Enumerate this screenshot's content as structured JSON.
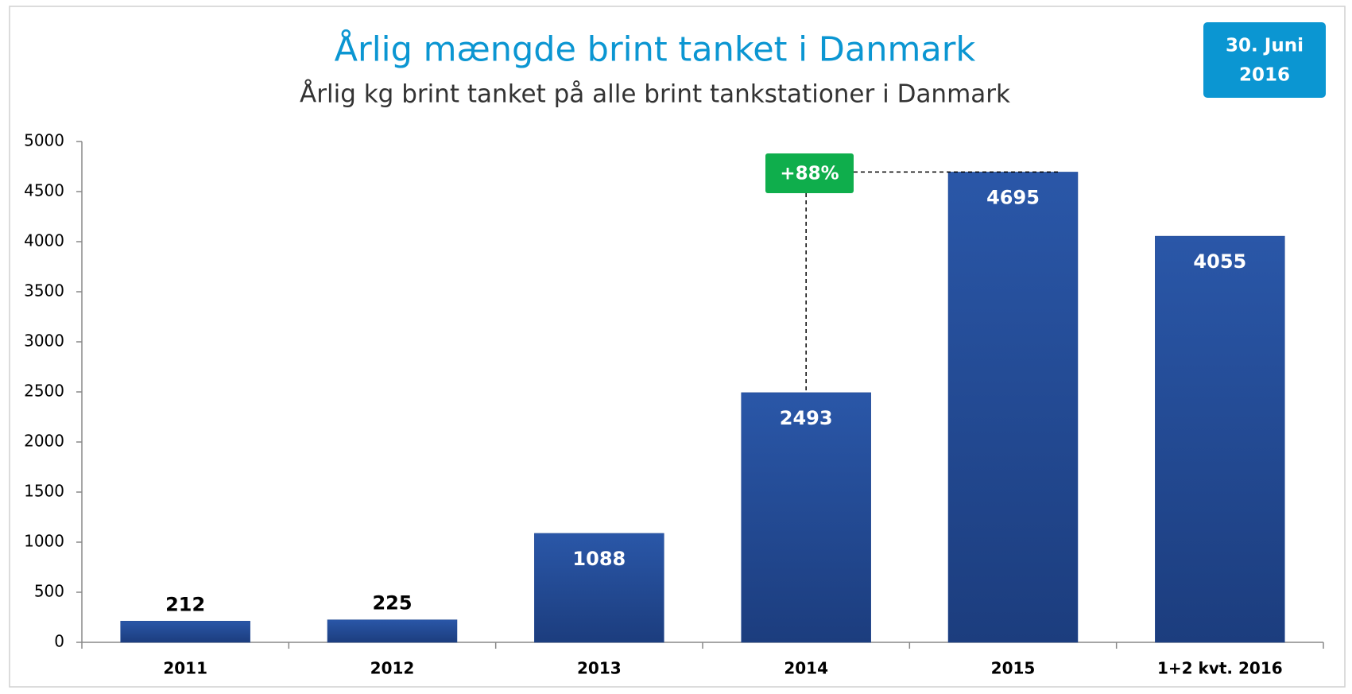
{
  "chart_data": {
    "type": "bar",
    "title": "Årlig mængde brint tanket i Danmark",
    "subtitle": "Årlig kg brint tanket på alle brint tankstationer i Danmark",
    "date_badge": [
      "30. Juni",
      "2016"
    ],
    "annotation": "+88%",
    "categories": [
      "2011",
      "2012",
      "2013",
      "2014",
      "2015",
      "1+2 kvt. 2016"
    ],
    "values": [
      212,
      225,
      1088,
      2493,
      4695,
      4055
    ],
    "color": "#1f4690",
    "ylim": [
      0,
      5000
    ],
    "yticks": [
      0,
      500,
      1000,
      1500,
      2000,
      2500,
      3000,
      3500,
      4000,
      4500,
      5000
    ],
    "grid": false
  }
}
